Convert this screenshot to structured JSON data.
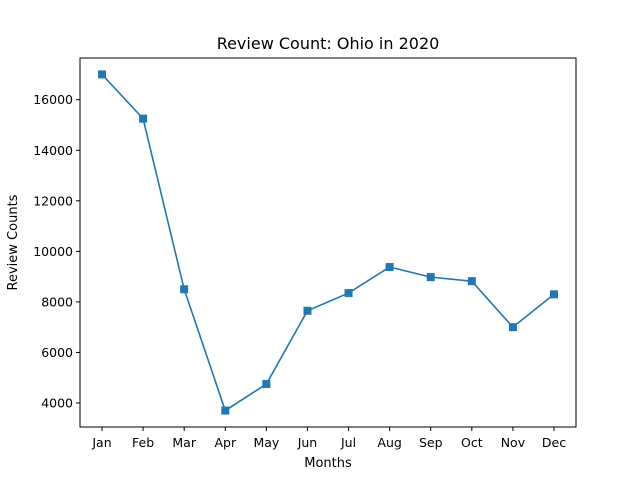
{
  "chart_data": {
    "type": "line",
    "title": "Review Count: Ohio in 2020",
    "xlabel": "Months",
    "ylabel": "Review Counts",
    "categories": [
      "Jan",
      "Feb",
      "Mar",
      "Apr",
      "May",
      "Jun",
      "Jul",
      "Aug",
      "Sep",
      "Oct",
      "Nov",
      "Dec"
    ],
    "series": [
      {
        "values": [
          17000,
          15250,
          8500,
          3700,
          4750,
          7650,
          8350,
          9380,
          8980,
          8820,
          7000,
          8300
        ],
        "color": "#1f77b4",
        "marker": "square"
      }
    ],
    "ylim": [
      3050,
      17650
    ],
    "yticks": [
      4000,
      6000,
      8000,
      10000,
      12000,
      14000,
      16000
    ],
    "ytick_labels": [
      "4000",
      "6000",
      "8000",
      "10000",
      "12000",
      "14000",
      "16000"
    ],
    "grid": false,
    "legend": "none"
  }
}
